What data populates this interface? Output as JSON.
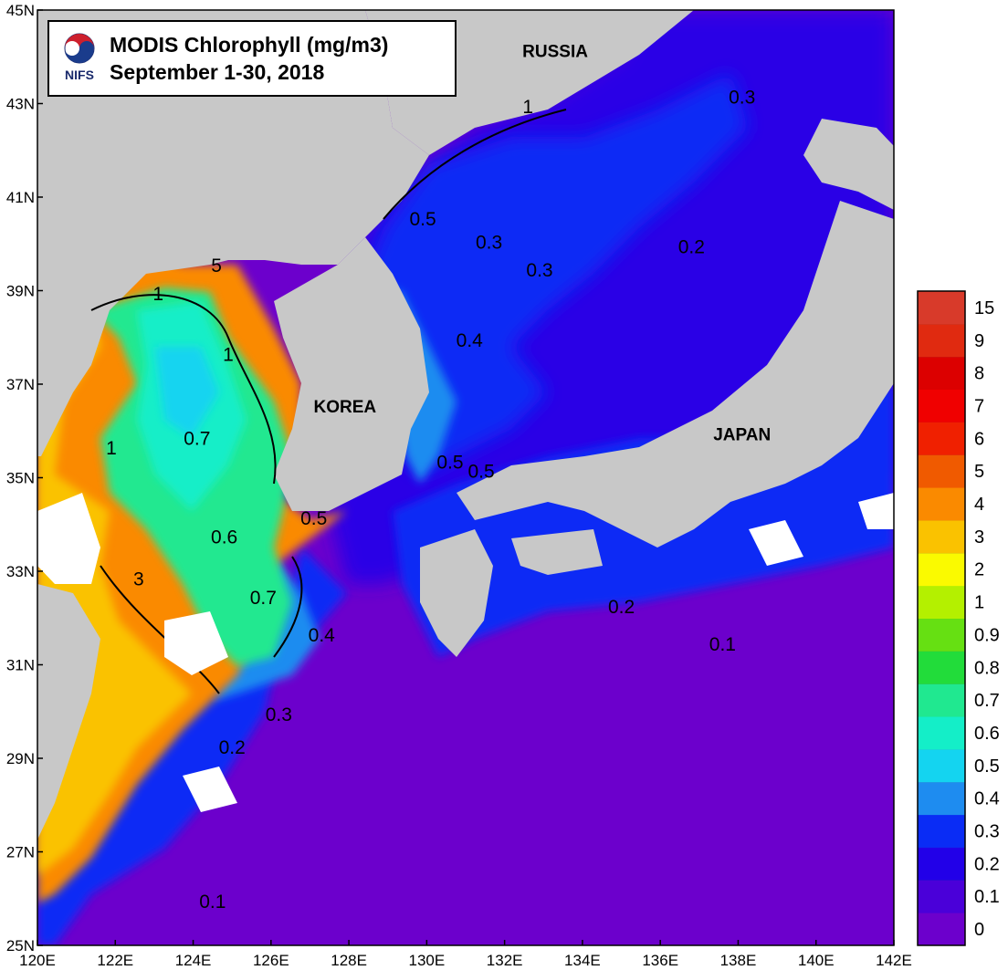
{
  "title": {
    "line1": "MODIS Chlorophyll (mg/m3)",
    "line2": "September 1-30, 2018",
    "logo_text": "NIFS"
  },
  "axes": {
    "x_ticks": [
      "120E",
      "122E",
      "124E",
      "126E",
      "128E",
      "130E",
      "132E",
      "134E",
      "136E",
      "138E",
      "140E",
      "142E"
    ],
    "y_ticks": [
      "45N",
      "43N",
      "41N",
      "39N",
      "37N",
      "35N",
      "33N",
      "31N",
      "29N",
      "27N",
      "25N"
    ]
  },
  "regions": [
    {
      "name": "RUSSIA",
      "lon": 133.3,
      "lat": 44.0
    },
    {
      "name": "KOREA",
      "lon": 127.9,
      "lat": 36.4
    },
    {
      "name": "JAPAN",
      "lon": 138.1,
      "lat": 35.8
    }
  ],
  "contour_labels": [
    {
      "text": "0.3",
      "lon": 132.9,
      "lat": 39.3
    },
    {
      "text": "0.3",
      "lon": 131.6,
      "lat": 39.9
    },
    {
      "text": "0.3",
      "lon": 138.1,
      "lat": 43.0
    },
    {
      "text": "0.2",
      "lon": 136.8,
      "lat": 39.8
    },
    {
      "text": "0.5",
      "lon": 129.9,
      "lat": 40.4
    },
    {
      "text": "0.4",
      "lon": 131.1,
      "lat": 37.8
    },
    {
      "text": "0.5",
      "lon": 127.1,
      "lat": 34.0
    },
    {
      "text": "0.5",
      "lon": 131.4,
      "lat": 35.0
    },
    {
      "text": "0.5",
      "lon": 130.6,
      "lat": 35.2
    },
    {
      "text": "1",
      "lon": 132.6,
      "lat": 42.8
    },
    {
      "text": "5",
      "lon": 124.6,
      "lat": 39.4
    },
    {
      "text": "1",
      "lon": 123.1,
      "lat": 38.8
    },
    {
      "text": "1",
      "lon": 124.9,
      "lat": 37.5
    },
    {
      "text": "0.7",
      "lon": 124.1,
      "lat": 35.7
    },
    {
      "text": "1",
      "lon": 121.9,
      "lat": 35.5
    },
    {
      "text": "0.6",
      "lon": 124.8,
      "lat": 33.6
    },
    {
      "text": "0.7",
      "lon": 125.8,
      "lat": 32.3
    },
    {
      "text": "0.4",
      "lon": 127.3,
      "lat": 31.5
    },
    {
      "text": "3",
      "lon": 122.6,
      "lat": 32.7
    },
    {
      "text": "0.3",
      "lon": 126.2,
      "lat": 29.8
    },
    {
      "text": "0.2",
      "lon": 125.0,
      "lat": 29.1
    },
    {
      "text": "0.2",
      "lon": 135.0,
      "lat": 32.1
    },
    {
      "text": "0.1",
      "lon": 137.6,
      "lat": 31.3
    },
    {
      "text": "0.1",
      "lon": 124.5,
      "lat": 25.8
    }
  ],
  "colorbar": {
    "bins": [
      {
        "label": "0",
        "color": "#6c00cc"
      },
      {
        "label": "0.1",
        "color": "#4a00d9"
      },
      {
        "label": "0.2",
        "color": "#2200e8"
      },
      {
        "label": "0.3",
        "color": "#0a2cf5"
      },
      {
        "label": "0.4",
        "color": "#1e8cf0"
      },
      {
        "label": "0.5",
        "color": "#14d4f0"
      },
      {
        "label": "0.6",
        "color": "#14eec8"
      },
      {
        "label": "0.7",
        "color": "#20e890"
      },
      {
        "label": "0.8",
        "color": "#22dc3a"
      },
      {
        "label": "0.9",
        "color": "#66e012"
      },
      {
        "label": "1",
        "color": "#b4f000"
      },
      {
        "label": "2",
        "color": "#fafa00"
      },
      {
        "label": "3",
        "color": "#fac200"
      },
      {
        "label": "4",
        "color": "#fa8a00"
      },
      {
        "label": "5",
        "color": "#f05a00"
      },
      {
        "label": "6",
        "color": "#f02000"
      },
      {
        "label": "7",
        "color": "#f00000"
      },
      {
        "label": "8",
        "color": "#dc0000"
      },
      {
        "label": "9",
        "color": "#e02a10"
      },
      {
        "label": "15",
        "color": "#d83a2a"
      }
    ]
  },
  "colors": {
    "land": "#c8c8c8",
    "open_ocean": "#6c00cc",
    "no_data": "#ffffff"
  }
}
